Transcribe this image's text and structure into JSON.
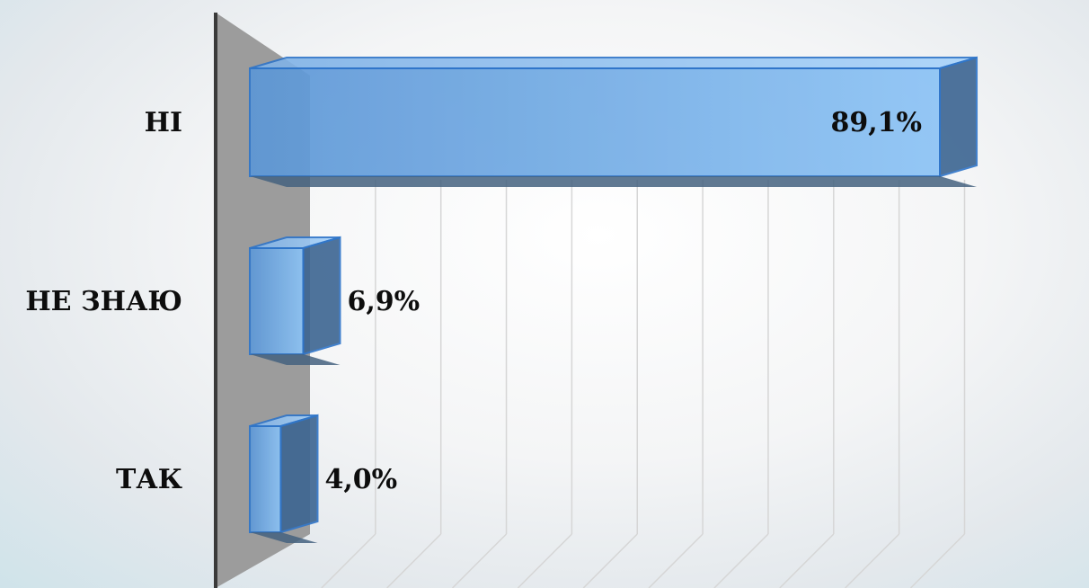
{
  "chart_data": {
    "type": "bar",
    "orientation": "horizontal",
    "three_d": true,
    "categories": [
      "НІ",
      "НЕ ЗНАЮ",
      "ТАК"
    ],
    "values": [
      89.1,
      6.9,
      4.0
    ],
    "value_labels": [
      "89,1%",
      "6,9%",
      "4,0%"
    ],
    "xlim": [
      0,
      100
    ],
    "grid": true,
    "legend": "none",
    "title": "",
    "xlabel": "",
    "ylabel": "",
    "colors": {
      "bar": "#5b9bd5",
      "bar_edge": "#2f75c9",
      "wall": "#9a9a9a",
      "axis": "#3a3a3a"
    }
  }
}
